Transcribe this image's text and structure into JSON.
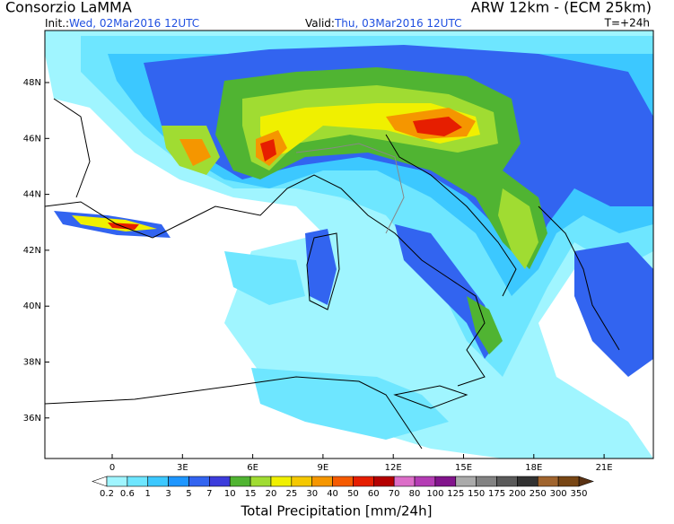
{
  "header": {
    "title": "Consorzio LaMMA",
    "model": "ARW 12km - (ECM 25km)",
    "init_label": "Init.:",
    "init_date": "Wed, 02Mar2016 12UTC",
    "valid_label": "Valid:",
    "valid_date": "Thu, 03Mar2016 12UTC",
    "lead_time": "T=+24h"
  },
  "map": {
    "lat_labels": [
      "48N",
      "46N",
      "44N",
      "42N",
      "40N",
      "38N",
      "36N"
    ],
    "lon_labels": [
      "0",
      "3E",
      "6E",
      "9E",
      "12E",
      "15E",
      "18E",
      "21E"
    ]
  },
  "colorbar": {
    "title": "Total Precipitation [mm/24h]",
    "levels": [
      0.2,
      0.6,
      1,
      3,
      5,
      7,
      10,
      15,
      20,
      25,
      30,
      40,
      50,
      60,
      70,
      80,
      100,
      125,
      150,
      175,
      200,
      250,
      300,
      350
    ],
    "colors": [
      "#a0f5ff",
      "#6ee6ff",
      "#3cc8ff",
      "#1e96ff",
      "#3264f0",
      "#3c3cdc",
      "#50b432",
      "#a0dc32",
      "#f0f000",
      "#f5c800",
      "#f59600",
      "#f55a00",
      "#e61e00",
      "#b40000",
      "#dc6ec8",
      "#b43cb4",
      "#82148c",
      "#aaaaaa",
      "#828282",
      "#5a5a5a",
      "#323232",
      "#a0642d",
      "#784614"
    ],
    "below_color": "#ffffff",
    "above_color": "#5a3214"
  }
}
